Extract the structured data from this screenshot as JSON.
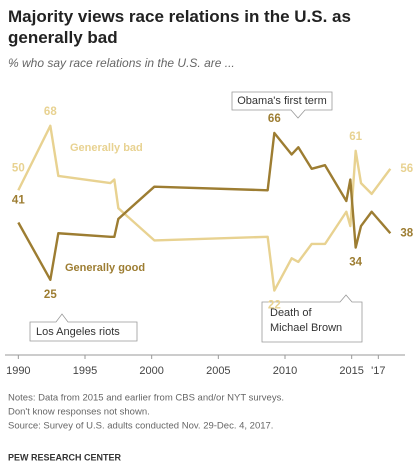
{
  "chart_data": {
    "type": "line",
    "title": "Majority views race relations in the U.S. as generally bad",
    "subtitle": "% who say race relations in the U.S. are ...",
    "x": [
      1990,
      1992.4,
      1993,
      1996.9,
      1997.2,
      1997.5,
      2000.2,
      2008.7,
      2009.2,
      2010.5,
      2011,
      2012,
      2013,
      2014.6,
      2014.9,
      2015.3,
      2015.7,
      2016.5,
      2017.9
    ],
    "series": [
      {
        "name": "Generally bad",
        "color": "#e8d291",
        "label_indices": [
          0,
          1,
          8,
          15,
          18
        ],
        "values": [
          50,
          68,
          54,
          52,
          53,
          45,
          36,
          37,
          22,
          31,
          30,
          35,
          35,
          44,
          40,
          61,
          52,
          49,
          56
        ]
      },
      {
        "name": "Generally good",
        "color": "#9d7d32",
        "label_indices": [
          0,
          1,
          8,
          15,
          18
        ],
        "values": [
          41,
          25,
          38,
          37,
          37,
          42,
          51,
          50,
          66,
          60,
          62,
          56,
          57,
          47,
          53,
          34,
          40,
          44,
          38
        ]
      }
    ],
    "xlim": [
      1989,
      2019
    ],
    "xticks": [
      1990,
      1995,
      2000,
      2005,
      2010,
      2015,
      {
        "value": 2017,
        "label": "'17"
      }
    ],
    "ylim": [
      4,
      78
    ],
    "annotations": {
      "obama": "Obama's first term",
      "la": "Los Angeles riots",
      "brown": [
        "Death of",
        "Michael Brown"
      ]
    },
    "notes": [
      "Notes: Data from 2015 and earlier from CBS and/or NYT surveys.",
      "Don't know responses not shown.",
      "Source: Survey of U.S. adults conducted Nov. 29-Dec. 4, 2017."
    ],
    "source": "PEW RESEARCH CENTER"
  }
}
